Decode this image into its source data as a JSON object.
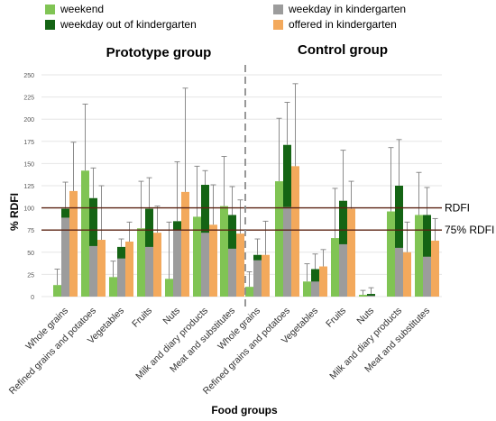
{
  "colors": {
    "weekend": "#80c454",
    "weekday_out": "#146414",
    "weekday_in": "#9c9c9c",
    "offered": "#f3a95c",
    "ref_line": "#5c2414",
    "divider": "#8c8c8c"
  },
  "legend": [
    {
      "key": "weekend",
      "label": "weekend"
    },
    {
      "key": "weekday_in",
      "label": "weekday in kindergarten"
    },
    {
      "key": "weekday_out",
      "label": "weekday out of kindergarten"
    },
    {
      "key": "offered",
      "label": "offered in kindergarten"
    }
  ],
  "chart_data": {
    "type": "bar",
    "xlabel": "Food groups",
    "ylabel": "% RDFI",
    "ylim": [
      0,
      250
    ],
    "yticks": [
      0,
      25,
      50,
      75,
      100,
      125,
      150,
      175,
      200,
      225,
      250
    ],
    "grid": true,
    "panels": [
      {
        "title": "Prototype group",
        "categories": [
          "Whole grains",
          "Refined grains and potatoes",
          "Vegetables",
          "Fruits",
          "Nuts",
          "Milk and diary products",
          "Meat and substitutes"
        ],
        "weekend": {
          "values": [
            13,
            142,
            22,
            77,
            20,
            90,
            102
          ],
          "err_high": [
            31,
            217,
            40,
            130,
            84,
            147,
            158
          ]
        },
        "weekday_in": {
          "values": [
            89,
            57,
            43,
            56,
            75,
            72,
            54
          ],
          "err_high": [
            129,
            145,
            65,
            100,
            152,
            129,
            124
          ]
        },
        "weekday_out": {
          "values": [
            99,
            111,
            56,
            99,
            85,
            126,
            92
          ],
          "err_high": [
            129,
            145,
            65,
            134,
            152,
            142,
            124
          ]
        },
        "offered": {
          "values": [
            119,
            64,
            62,
            72,
            118,
            81,
            71
          ],
          "err_high": [
            174,
            125,
            84,
            102,
            235,
            126,
            109
          ]
        }
      },
      {
        "title": "Control group",
        "categories": [
          "Whole grains",
          "Refined grains and potatoes",
          "Vegetables",
          "Fruits",
          "Nuts",
          "Milk and diary products",
          "Meat and substitutes"
        ],
        "weekend": {
          "values": [
            11,
            130,
            17,
            66,
            2,
            96,
            92
          ],
          "err_high": [
            28,
            201,
            37,
            122,
            7,
            168,
            140
          ]
        },
        "weekday_in": {
          "values": [
            41,
            101,
            17,
            59,
            1,
            55,
            45
          ],
          "err_high": [
            65,
            219,
            48,
            107,
            6,
            124,
            123
          ]
        },
        "weekday_out": {
          "values": [
            47,
            171,
            31,
            108,
            3,
            125,
            92
          ],
          "err_high": [
            65,
            219,
            48,
            165,
            10,
            177,
            123
          ]
        },
        "offered": {
          "values": [
            47,
            147,
            34,
            99,
            0,
            50,
            63
          ],
          "err_high": [
            85,
            240,
            53,
            130,
            0,
            84,
            88
          ]
        }
      }
    ],
    "reference_lines": [
      {
        "label": "RDFI",
        "value": 100
      },
      {
        "label": "75% RDFI",
        "value": 75
      }
    ]
  }
}
